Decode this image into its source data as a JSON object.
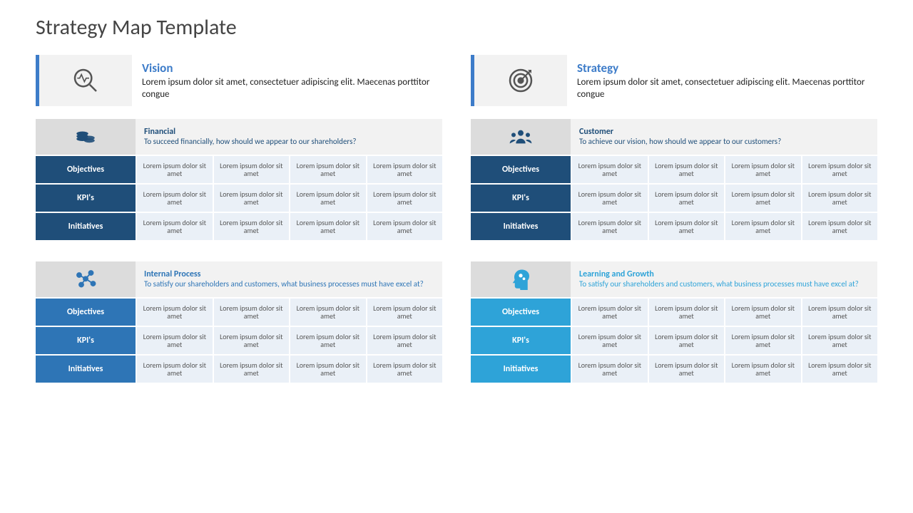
{
  "page_title": "Strategy Map Template",
  "top": [
    {
      "title": "Vision",
      "desc": "Lorem ipsum dolor sit amet, consectetuer adipiscing elit. Maecenas porttitor congue",
      "accent_color": "#3d7cc9",
      "title_color": "#3d7cc9",
      "icon": "magnifier-pulse"
    },
    {
      "title": "Strategy",
      "desc": "Lorem ipsum dolor sit amet, consectetuer adipiscing elit. Maecenas porttitor congue",
      "accent_color": "#3d7cc9",
      "title_color": "#3d7cc9",
      "icon": "target"
    }
  ],
  "sections": [
    {
      "title": "Financial",
      "desc": "To succeed financially, how should we appear to our shareholders?",
      "icon": "coins",
      "icon_bg": "#dcdcdc",
      "title_color": "#1f4e79",
      "row_bg": "#1f4e79",
      "rows": [
        "Objectives",
        "KPI's",
        "Initiatives"
      ],
      "cell_text": "Lorem ipsum dolor sit amet"
    },
    {
      "title": "Customer",
      "desc": "To achieve our vision, how should we appear to our customers?",
      "icon": "people",
      "icon_bg": "#dcdcdc",
      "title_color": "#1f4e79",
      "row_bg": "#1f4e79",
      "rows": [
        "Objectives",
        "KPI's",
        "Initiatives"
      ],
      "cell_text": "Lorem ipsum dolor sit amet"
    },
    {
      "title": "Internal Process",
      "desc": "To satisfy our shareholders and customers, what business processes must have excel at?",
      "icon": "network",
      "icon_bg": "#dcdcdc",
      "title_color": "#2e75b6",
      "row_bg": "#2e75b6",
      "rows": [
        "Objectives",
        "KPI's",
        "Initiatives"
      ],
      "cell_text": "Lorem ipsum dolor sit amet"
    },
    {
      "title": "Learning and Growth",
      "desc": "To satisfy our shareholders and customers, what business processes must have excel at?",
      "icon": "head-gears",
      "icon_bg": "#dcdcdc",
      "title_color": "#2ea3d8",
      "row_bg": "#2ea3d8",
      "rows": [
        "Objectives",
        "KPI's",
        "Initiatives"
      ],
      "cell_text": "Lorem ipsum dolor sit amet"
    }
  ],
  "style": {
    "cell_bg": "#eaf0f7",
    "header_panel_bg": "#f2f2f2",
    "background": "#ffffff",
    "cell_fontsize": 10,
    "section_title_fontsize": 12,
    "top_title_fontsize": 17,
    "page_title_fontsize": 30,
    "page_title_color": "#444444"
  }
}
